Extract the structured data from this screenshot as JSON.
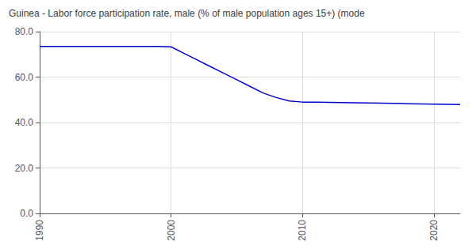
{
  "chart_data": {
    "type": "line",
    "title": "Guinea - Labor force participation rate, male (% of male population ages 15+) (mode",
    "x": [
      1990,
      1991,
      1992,
      1993,
      1994,
      1995,
      1996,
      1997,
      1998,
      1999,
      2000,
      2001,
      2002,
      2003,
      2004,
      2005,
      2006,
      2007,
      2008,
      2009,
      2010,
      2011,
      2012,
      2013,
      2014,
      2015,
      2016,
      2017,
      2018,
      2019,
      2020,
      2021,
      2022
    ],
    "values": [
      73.5,
      73.5,
      73.5,
      73.5,
      73.5,
      73.5,
      73.5,
      73.5,
      73.5,
      73.5,
      73.3,
      70.4,
      67.5,
      64.6,
      61.7,
      58.8,
      55.9,
      53.0,
      51.0,
      49.5,
      49.0,
      49.0,
      48.9,
      48.8,
      48.7,
      48.6,
      48.5,
      48.4,
      48.3,
      48.2,
      48.1,
      48.0,
      47.9
    ],
    "color": "#0000CC",
    "xlim": [
      1990,
      2022
    ],
    "ylim": [
      0.0,
      80.0
    ],
    "xticks": [
      1990,
      2000,
      2010,
      2020
    ],
    "yticks": [
      {
        "value": 0.0,
        "label": "0.0"
      },
      {
        "value": 20.0,
        "label": "20.0"
      },
      {
        "value": 40.0,
        "label": "40.0"
      },
      {
        "value": 60.0,
        "label": "60.0"
      },
      {
        "value": 80.0,
        "label": "80.0"
      }
    ],
    "grid": true
  }
}
